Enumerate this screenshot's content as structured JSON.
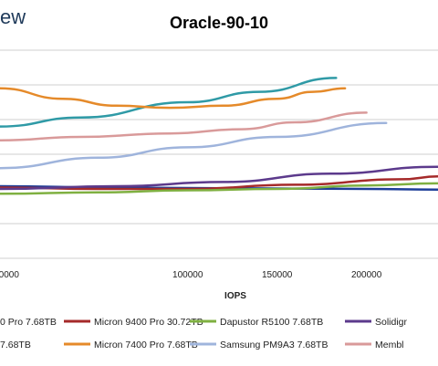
{
  "logo_text": "ew",
  "chart_data": {
    "type": "line",
    "title": "Oracle-90-10",
    "xlabel": "IOPS",
    "ylabel": "",
    "xlim": [
      -5000,
      240000
    ],
    "x_ticks": [
      {
        "value": 0,
        "label": "0000"
      },
      {
        "value": 100000,
        "label": "100000"
      },
      {
        "value": 150000,
        "label": "150000"
      },
      {
        "value": 200000,
        "label": "200000"
      }
    ],
    "grid": "horizontal",
    "legend_position": "bottom",
    "colors": {
      "micron9400_7": "#1f3f99",
      "micron9400_30": "#a52a2a",
      "dapustor": "#7fb041",
      "solidigm": "#5c3a8c",
      "kioxia": "#2f9aa6",
      "micron7400": "#e58a2a",
      "samsung": "#9fb4dc",
      "memblaze": "#d99a9a"
    },
    "series": [
      {
        "key": "micron9400_7",
        "name": "0 Pro 7.68TB",
        "points": [
          [
            -5000,
            1.04
          ],
          [
            60000,
            1.02
          ],
          [
            120000,
            1.01
          ],
          [
            200000,
            1.0
          ],
          [
            240000,
            0.99
          ]
        ]
      },
      {
        "key": "micron9400_30",
        "name": "Micron 9400 Pro 30.72TB",
        "points": [
          [
            -5000,
            1.02
          ],
          [
            50000,
            1.0
          ],
          [
            100000,
            1.0
          ],
          [
            160000,
            1.06
          ],
          [
            220000,
            1.14
          ],
          [
            240000,
            1.18
          ]
        ]
      },
      {
        "key": "dapustor",
        "name": "Dapustor R5100 7.68TB",
        "points": [
          [
            -5000,
            0.93
          ],
          [
            50000,
            0.95
          ],
          [
            100000,
            0.98
          ],
          [
            150000,
            1.0
          ],
          [
            200000,
            1.05
          ],
          [
            240000,
            1.08
          ]
        ]
      },
      {
        "key": "solidigm",
        "name": "Solidigr",
        "points": [
          [
            -5000,
            1.0
          ],
          [
            60000,
            1.04
          ],
          [
            120000,
            1.1
          ],
          [
            180000,
            1.22
          ],
          [
            240000,
            1.32
          ]
        ]
      },
      {
        "key": "kioxia",
        "name": "7.68TB",
        "points": [
          [
            -5000,
            1.9
          ],
          [
            40000,
            2.03
          ],
          [
            100000,
            2.25
          ],
          [
            140000,
            2.4
          ],
          [
            183000,
            2.6
          ]
        ]
      },
      {
        "key": "micron7400",
        "name": "Micron 7400 Pro 7.68TB",
        "points": [
          [
            -5000,
            2.45
          ],
          [
            30000,
            2.3
          ],
          [
            60000,
            2.2
          ],
          [
            90000,
            2.17
          ],
          [
            120000,
            2.2
          ],
          [
            150000,
            2.3
          ],
          [
            170000,
            2.4
          ],
          [
            188000,
            2.45
          ]
        ]
      },
      {
        "key": "samsung",
        "name": "Samsung PM9A3 7.68TB",
        "points": [
          [
            -5000,
            1.3
          ],
          [
            50000,
            1.45
          ],
          [
            100000,
            1.6
          ],
          [
            150000,
            1.75
          ],
          [
            211000,
            1.95
          ]
        ]
      },
      {
        "key": "memblaze",
        "name": "Membl",
        "points": [
          [
            -5000,
            1.7
          ],
          [
            40000,
            1.75
          ],
          [
            90000,
            1.8
          ],
          [
            130000,
            1.86
          ],
          [
            160000,
            1.96
          ],
          [
            200000,
            2.1
          ]
        ]
      }
    ],
    "legend": [
      {
        "key": "micron9400_7",
        "label": "0 Pro 7.68TB"
      },
      {
        "key": "micron9400_30",
        "label": "Micron 9400 Pro 30.72TB"
      },
      {
        "key": "dapustor",
        "label": "Dapustor R5100 7.68TB"
      },
      {
        "key": "solidigm",
        "label": "Solidigr"
      },
      {
        "key": "kioxia",
        "label": "7.68TB"
      },
      {
        "key": "micron7400",
        "label": "Micron 7400 Pro 7.68TB"
      },
      {
        "key": "samsung",
        "label": "Samsung PM9A3 7.68TB"
      },
      {
        "key": "memblaze",
        "label": "Membl"
      }
    ]
  }
}
